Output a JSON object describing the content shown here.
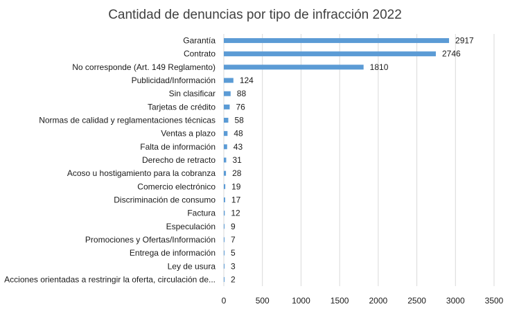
{
  "chart_data": {
    "type": "bar",
    "orientation": "horizontal",
    "title": "Cantidad de denuncias por tipo de infracción 2022",
    "categories": [
      "Garantía",
      "Contrato",
      "No corresponde (Art. 149 Reglamento)",
      "Publicidad/Información",
      "Sin clasificar",
      "Tarjetas de crédito",
      "Normas de calidad y reglamentaciones técnicas",
      "Ventas a plazo",
      "Falta de información",
      "Derecho de retracto",
      "Acoso u hostigamiento para la cobranza",
      "Comercio electrónico",
      "Discriminación de consumo",
      "Factura",
      "Especulación",
      "Promociones y Ofertas/Información",
      "Entrega de información",
      "Ley de usura",
      "Acciones orientadas a restringir la oferta, circulación de..."
    ],
    "values": [
      2917,
      2746,
      1810,
      124,
      88,
      76,
      58,
      48,
      43,
      31,
      28,
      19,
      17,
      12,
      9,
      7,
      5,
      3,
      2
    ],
    "xlim": [
      0,
      3500
    ],
    "ticks": [
      0,
      500,
      1000,
      1500,
      2000,
      2500,
      3000,
      3500
    ],
    "grid": true,
    "legend": "none",
    "bar_color": "#5b9bd5",
    "grid_color": "#d9d9d9"
  }
}
